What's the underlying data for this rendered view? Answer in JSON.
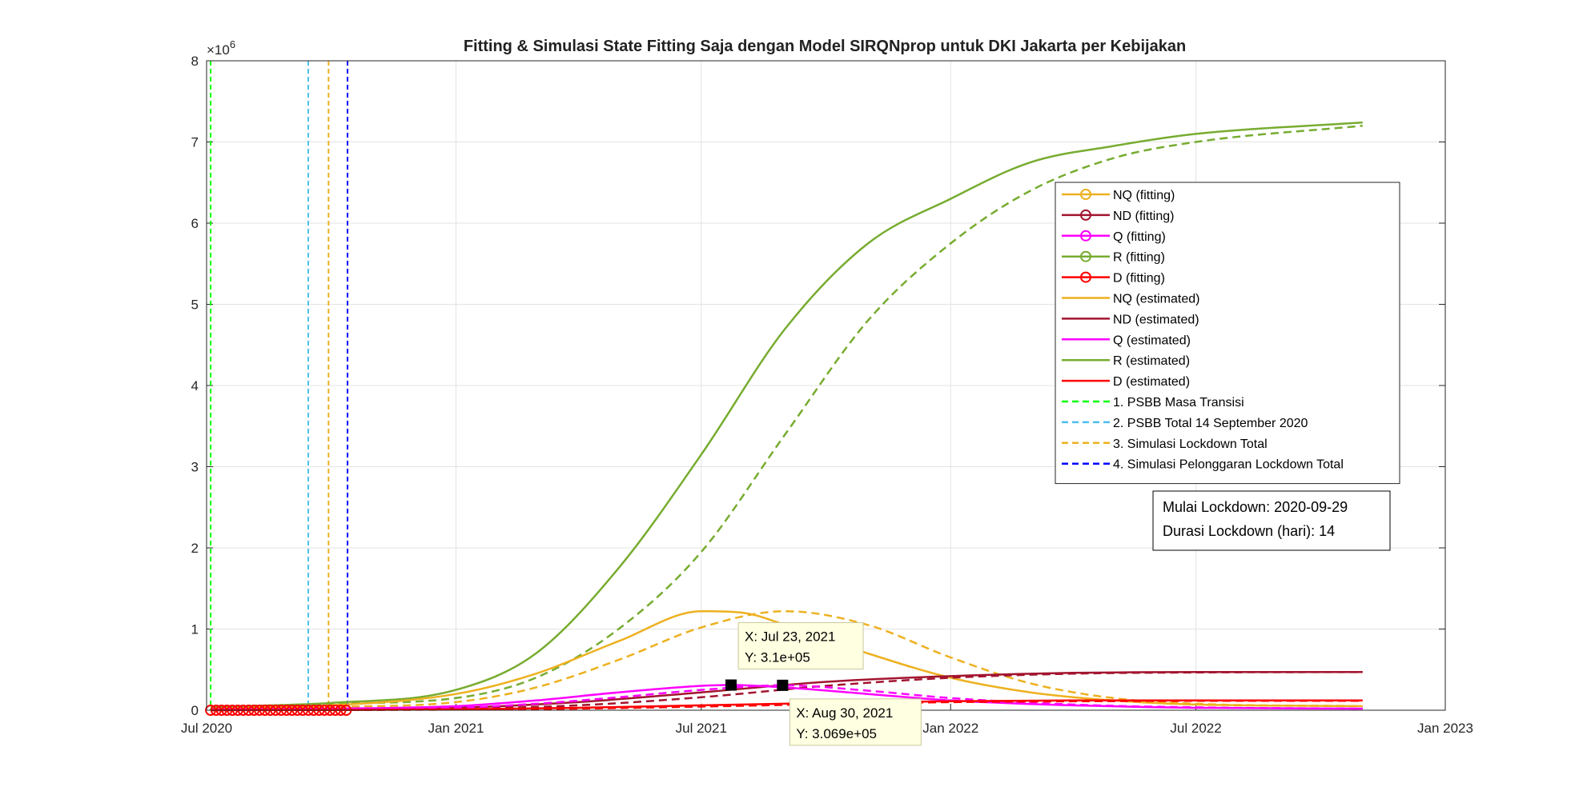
{
  "chart_data": {
    "type": "line",
    "title": "Fitting & Simulasi State Fitting Saja dengan Model SIRQNprop untuk DKI Jakarta per Kebijakan",
    "xlabel": "",
    "ylabel": "",
    "exponent_label": "×10",
    "exponent_power": "6",
    "x_axis": {
      "type": "date",
      "min": "2020-07-01",
      "max": "2023-01-01"
    },
    "x_ticks": [
      {
        "date": "2020-07-01",
        "label": "Jul 2020"
      },
      {
        "date": "2021-01-01",
        "label": "Jan 2021"
      },
      {
        "date": "2021-07-01",
        "label": "Jul 2021"
      },
      {
        "date": "2022-01-01",
        "label": "Jan 2022"
      },
      {
        "date": "2022-07-01",
        "label": "Jul 2022"
      },
      {
        "date": "2023-01-01",
        "label": "Jan 2023"
      }
    ],
    "ylim": [
      0,
      8
    ],
    "y_ticks": [
      {
        "value": 0,
        "label": "0"
      },
      {
        "value": 1,
        "label": "1"
      },
      {
        "value": 2,
        "label": "2"
      },
      {
        "value": 3,
        "label": "3"
      },
      {
        "value": 4,
        "label": "4"
      },
      {
        "value": 5,
        "label": "5"
      },
      {
        "value": 6,
        "label": "6"
      },
      {
        "value": 7,
        "label": "7"
      },
      {
        "value": 8,
        "label": "8"
      }
    ],
    "grid": true,
    "legend_position": "right",
    "legend": [
      {
        "label": "NQ (fitting)",
        "color": "#EDB120",
        "style": "marker"
      },
      {
        "label": "ND (fitting)",
        "color": "#A2142F",
        "style": "marker"
      },
      {
        "label": "Q (fitting)",
        "color": "#FF00FF",
        "style": "marker"
      },
      {
        "label": "R (fitting)",
        "color": "#77AC30",
        "style": "marker"
      },
      {
        "label": "D (fitting)",
        "color": "#FF0000",
        "style": "marker"
      },
      {
        "label": "NQ (estimated)",
        "color": "#EDB120",
        "style": "solid"
      },
      {
        "label": "ND (estimated)",
        "color": "#A2142F",
        "style": "solid"
      },
      {
        "label": "Q (estimated)",
        "color": "#FF00FF",
        "style": "solid"
      },
      {
        "label": "R (estimated)",
        "color": "#77AC30",
        "style": "solid"
      },
      {
        "label": "D (estimated)",
        "color": "#FF0000",
        "style": "solid"
      },
      {
        "label": "1. PSBB Masa Transisi",
        "color": "#00FF00",
        "style": "dashed"
      },
      {
        "label": "2. PSBB Total 14 September 2020",
        "color": "#4DBEEE",
        "style": "dashed"
      },
      {
        "label": "3. Simulasi Lockdown Total",
        "color": "#EDB120",
        "style": "dashed"
      },
      {
        "label": "4. Simulasi Pelonggaran Lockdown Total",
        "color": "#0000FF",
        "style": "dashed"
      }
    ],
    "policy_lines": [
      {
        "date": "2020-07-04",
        "color": "#00FF00"
      },
      {
        "date": "2020-09-14",
        "color": "#4DBEEE"
      },
      {
        "date": "2020-09-29",
        "color": "#EDB120"
      },
      {
        "date": "2020-10-13",
        "color": "#0000FF"
      }
    ],
    "series": [
      {
        "color": "#77AC30",
        "style": "solid",
        "x": [
          "2020-07-04",
          "2020-10-01",
          "2021-01-01",
          "2021-03-01",
          "2021-05-01",
          "2021-07-01",
          "2021-09-01",
          "2021-11-01",
          "2022-01-01",
          "2022-03-01",
          "2022-05-01",
          "2022-07-01",
          "2022-11-01"
        ],
        "y": [
          0.04,
          0.09,
          0.25,
          0.7,
          1.75,
          3.15,
          4.7,
          5.75,
          6.3,
          6.75,
          6.95,
          7.1,
          7.24
        ]
      },
      {
        "color": "#77AC30",
        "style": "dashed",
        "x": [
          "2020-07-04",
          "2020-10-01",
          "2021-01-01",
          "2021-03-01",
          "2021-05-01",
          "2021-07-01",
          "2021-09-01",
          "2021-11-01",
          "2022-01-01",
          "2022-03-01",
          "2022-05-01",
          "2022-07-01",
          "2022-11-01"
        ],
        "y": [
          0.04,
          0.08,
          0.15,
          0.4,
          1.0,
          1.95,
          3.4,
          4.8,
          5.75,
          6.4,
          6.8,
          7.0,
          7.2
        ]
      },
      {
        "color": "#EDB120",
        "style": "solid",
        "x": [
          "2020-07-04",
          "2020-10-01",
          "2021-01-01",
          "2021-03-01",
          "2021-05-01",
          "2021-07-01",
          "2021-08-01",
          "2021-09-01",
          "2021-11-01",
          "2022-01-01",
          "2022-03-01",
          "2022-05-01",
          "2022-07-01",
          "2022-11-01"
        ],
        "y": [
          0.02,
          0.06,
          0.2,
          0.45,
          0.85,
          1.22,
          1.2,
          1.05,
          0.7,
          0.4,
          0.22,
          0.12,
          0.07,
          0.05
        ]
      },
      {
        "color": "#EDB120",
        "style": "dashed",
        "x": [
          "2020-07-04",
          "2020-10-01",
          "2021-01-01",
          "2021-03-01",
          "2021-05-01",
          "2021-07-01",
          "2021-09-01",
          "2021-11-01",
          "2022-01-01",
          "2022-03-01",
          "2022-05-01",
          "2022-07-01",
          "2022-11-01"
        ],
        "y": [
          0.02,
          0.04,
          0.1,
          0.28,
          0.62,
          1.02,
          1.22,
          1.05,
          0.65,
          0.33,
          0.15,
          0.08,
          0.05
        ]
      },
      {
        "color": "#A2142F",
        "style": "solid",
        "x": [
          "2020-07-04",
          "2020-10-01",
          "2021-01-01",
          "2021-04-01",
          "2021-07-01",
          "2021-10-01",
          "2022-01-01",
          "2022-04-01",
          "2022-07-01",
          "2022-11-01"
        ],
        "y": [
          0.0,
          0.01,
          0.03,
          0.1,
          0.22,
          0.35,
          0.42,
          0.46,
          0.47,
          0.47
        ]
      },
      {
        "color": "#A2142F",
        "style": "dashed",
        "x": [
          "2020-07-04",
          "2020-10-01",
          "2021-01-01",
          "2021-04-01",
          "2021-07-01",
          "2021-10-01",
          "2022-01-01",
          "2022-04-01",
          "2022-07-01",
          "2022-11-01"
        ],
        "y": [
          0.0,
          0.01,
          0.02,
          0.06,
          0.16,
          0.3,
          0.4,
          0.45,
          0.465,
          0.47
        ]
      },
      {
        "color": "#FF00FF",
        "style": "solid",
        "x": [
          "2020-07-04",
          "2020-10-01",
          "2021-01-01",
          "2021-03-01",
          "2021-05-01",
          "2021-07-01",
          "2021-07-23",
          "2021-09-01",
          "2021-11-01",
          "2022-01-01",
          "2022-04-01",
          "2022-07-01",
          "2022-11-01"
        ],
        "y": [
          0.01,
          0.02,
          0.05,
          0.12,
          0.22,
          0.3,
          0.31,
          0.28,
          0.2,
          0.12,
          0.06,
          0.03,
          0.02
        ]
      },
      {
        "color": "#FF00FF",
        "style": "dashed",
        "x": [
          "2020-07-04",
          "2020-10-01",
          "2021-01-01",
          "2021-03-01",
          "2021-05-01",
          "2021-07-01",
          "2021-08-30",
          "2021-11-01",
          "2022-01-01",
          "2022-04-01",
          "2022-07-01",
          "2022-11-01"
        ],
        "y": [
          0.01,
          0.015,
          0.03,
          0.08,
          0.16,
          0.25,
          0.307,
          0.24,
          0.15,
          0.07,
          0.035,
          0.02
        ]
      },
      {
        "color": "#FF0000",
        "style": "solid",
        "x": [
          "2020-07-04",
          "2020-10-01",
          "2021-01-01",
          "2021-04-01",
          "2021-07-01",
          "2021-10-01",
          "2022-01-01",
          "2022-04-01",
          "2022-07-01",
          "2022-11-01"
        ],
        "y": [
          0.0,
          0.003,
          0.01,
          0.03,
          0.06,
          0.09,
          0.11,
          0.12,
          0.12,
          0.12
        ]
      },
      {
        "color": "#FF0000",
        "style": "dashed",
        "x": [
          "2020-07-04",
          "2020-10-01",
          "2021-01-01",
          "2021-04-01",
          "2021-07-01",
          "2021-10-01",
          "2022-01-01",
          "2022-04-01",
          "2022-07-01",
          "2022-11-01"
        ],
        "y": [
          0.0,
          0.003,
          0.008,
          0.02,
          0.045,
          0.075,
          0.1,
          0.11,
          0.115,
          0.115
        ]
      }
    ],
    "fitting_markers": {
      "start": "2020-07-04",
      "end": "2020-10-13",
      "y": 0.0,
      "color": "#FF0000"
    },
    "info_box": {
      "line1": "Mulai Lockdown: 2020-09-29",
      "line2": "Durasi Lockdown (hari): 14"
    },
    "datatips": [
      {
        "x": "2021-07-23",
        "y": 0.31,
        "line1": "X: Jul 23, 2021",
        "line2": "Y: 3.1e+05",
        "placement": "above-right"
      },
      {
        "x": "2021-08-30",
        "y": 0.3069,
        "line1": "X: Aug 30, 2021",
        "line2": "Y: 3.069e+05",
        "placement": "below-right"
      }
    ]
  }
}
